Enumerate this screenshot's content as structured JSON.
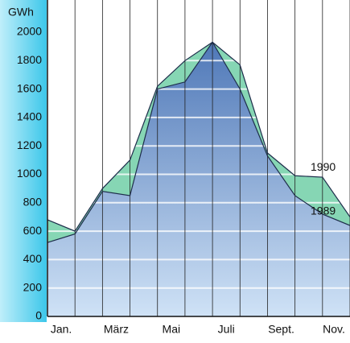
{
  "chart_data": {
    "type": "area",
    "y_label": "GWh",
    "categories": [
      "Jan.",
      null,
      "März",
      null,
      "Mai",
      null,
      "Juli",
      null,
      "Sept.",
      null,
      "Nov.",
      null
    ],
    "series": [
      {
        "name": "1990",
        "color": "#86d6b4",
        "values": [
          680,
          600,
          900,
          1100,
          1620,
          1800,
          1930,
          1770,
          1150,
          990,
          980,
          700
        ]
      },
      {
        "name": "1989",
        "color": "#6f93c9",
        "values": [
          520,
          580,
          880,
          850,
          1600,
          1650,
          1930,
          1600,
          1130,
          850,
          720,
          640
        ]
      }
    ],
    "ylim": [
      0,
      2000
    ],
    "yticks": [
      0,
      200,
      400,
      600,
      800,
      1000,
      1200,
      1400,
      1600,
      1800,
      2000
    ],
    "grid": true
  }
}
